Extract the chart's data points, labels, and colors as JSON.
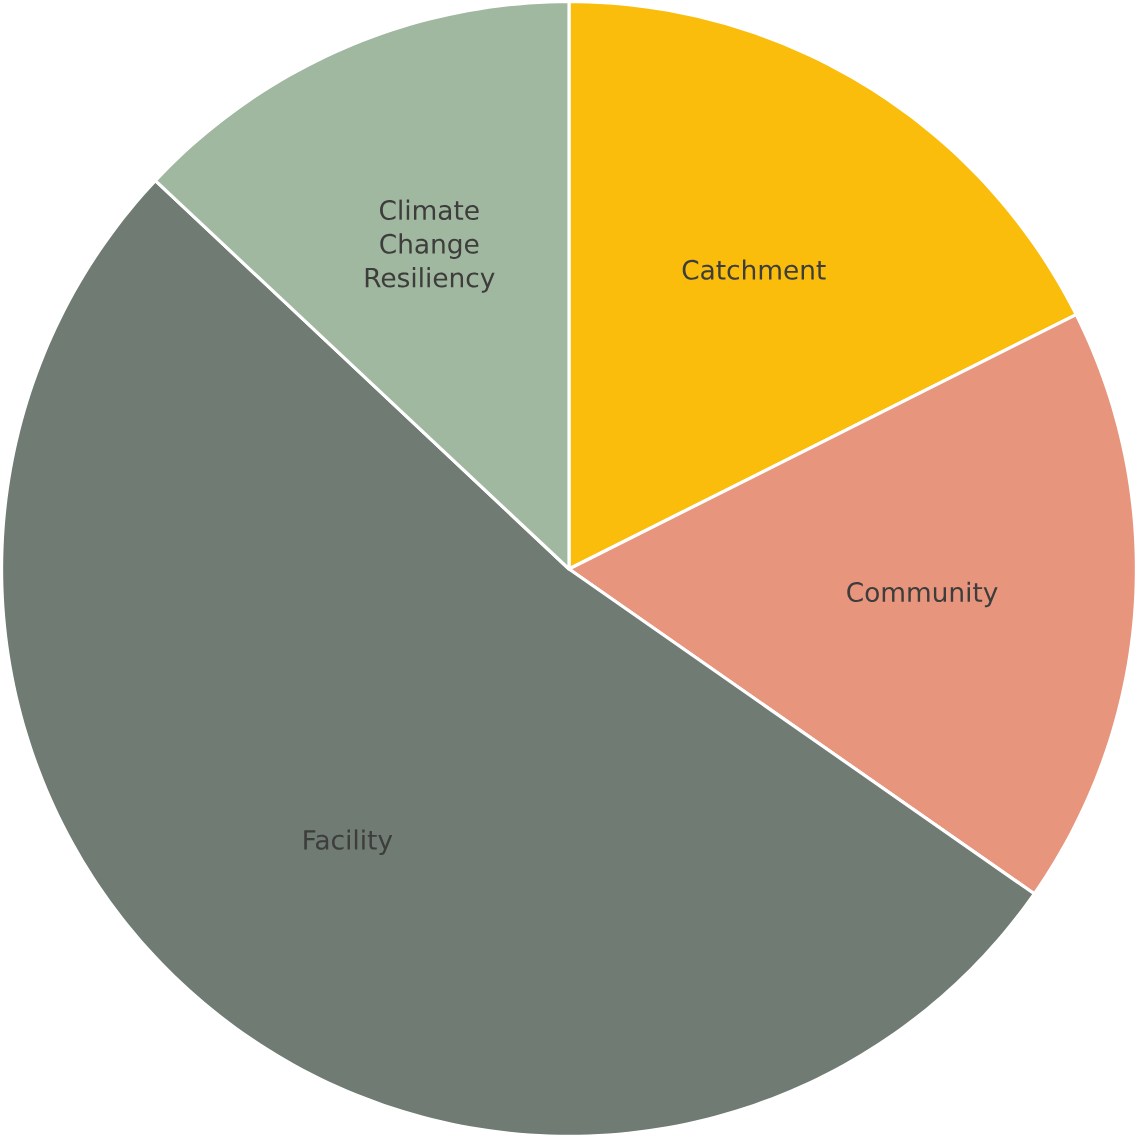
{
  "chart_data": {
    "type": "pie",
    "categories": [
      "Catchment",
      "Community",
      "Facility",
      "Climate Change Resiliency"
    ],
    "values": [
      17.6,
      17.1,
      52.3,
      13.0
    ],
    "colors": [
      "#fbbd0b",
      "#e8957e",
      "#6f7b73",
      "#a0b7a0"
    ]
  }
}
